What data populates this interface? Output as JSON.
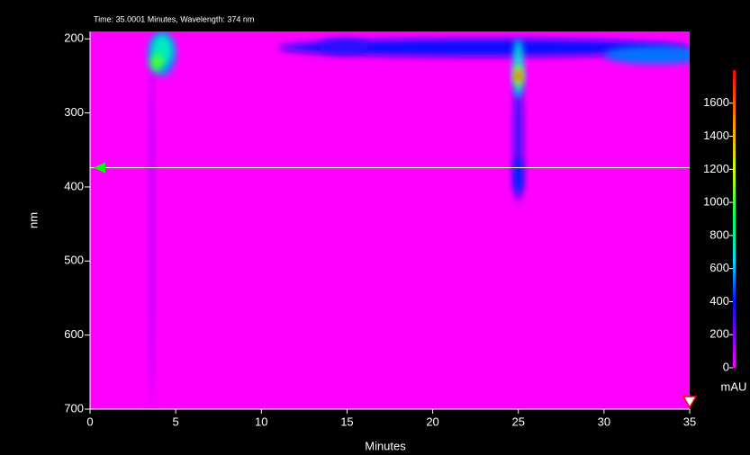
{
  "chart_data": {
    "type": "heatmap",
    "title": "Time: 35.0001 Minutes, Wavelength: 374 nm",
    "x_label": "Minutes",
    "y_label": "nm",
    "colorbar_label": "mAU",
    "xlim": [
      0,
      35
    ],
    "ylim": [
      700,
      190
    ],
    "xticks": [
      0,
      5,
      10,
      15,
      20,
      25,
      30,
      35
    ],
    "yticks": [
      200,
      300,
      400,
      500,
      600,
      700
    ],
    "clim": [
      0,
      1800
    ],
    "cticks": [
      0,
      200,
      400,
      600,
      800,
      1000,
      1200,
      1400,
      1600
    ],
    "background": "#ff00ff",
    "colorscale": [
      {
        "value": 0,
        "color": "#ff00ff"
      },
      {
        "value": 200,
        "color": "#8000ff"
      },
      {
        "value": 400,
        "color": "#0010ff"
      },
      {
        "value": 650,
        "color": "#00e0ff"
      },
      {
        "value": 900,
        "color": "#00ff60"
      },
      {
        "value": 1200,
        "color": "#d0ff00"
      },
      {
        "value": 1450,
        "color": "#ffa000"
      },
      {
        "value": 1800,
        "color": "#ff0000"
      }
    ],
    "cursor": {
      "time": 35.0001,
      "wavelength": 374
    },
    "peaks": [
      {
        "x": 3.6,
        "y": 450,
        "dx": 0.15,
        "dy": 250,
        "value": 120
      },
      {
        "x": 23,
        "y": 212,
        "dx": 12,
        "dy": 12,
        "value": 380
      },
      {
        "x": 33,
        "y": 222,
        "dx": 3,
        "dy": 12,
        "value": 520
      },
      {
        "x": 14.8,
        "y": 210,
        "dx": 1.5,
        "dy": 10,
        "value": 330
      },
      {
        "x": 25,
        "y": 330,
        "dx": 0.3,
        "dy": 90,
        "value": 300
      },
      {
        "x": 25,
        "y": 385,
        "dx": 0.3,
        "dy": 25,
        "value": 420
      },
      {
        "x": 4.2,
        "y": 220,
        "dx": 0.8,
        "dy": 30,
        "value": 550
      },
      {
        "x": 4.2,
        "y": 215,
        "dx": 0.6,
        "dy": 20,
        "value": 750
      },
      {
        "x": 3.9,
        "y": 232,
        "dx": 0.4,
        "dy": 12,
        "value": 1000
      },
      {
        "x": 25,
        "y": 240,
        "dx": 0.3,
        "dy": 40,
        "value": 700
      },
      {
        "x": 25,
        "y": 250,
        "dx": 0.25,
        "dy": 14,
        "value": 1200
      },
      {
        "x": 25,
        "y": 250,
        "dx": 0.15,
        "dy": 7,
        "value": 1700
      }
    ]
  }
}
